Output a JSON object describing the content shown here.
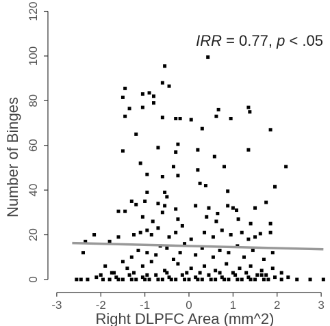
{
  "chart_data": {
    "type": "scatter",
    "xlabel": "Right DLPFC Area (mm^2)",
    "ylabel": "Number of Binges",
    "annotation": {
      "parts": [
        {
          "text": "IRR",
          "italic": true
        },
        {
          "text": " = 0.77, ",
          "italic": false
        },
        {
          "text": "p",
          "italic": true
        },
        {
          "text": " < .05",
          "italic": false
        }
      ]
    },
    "xlim": [
      -3.2,
      3.2
    ],
    "ylim": [
      -4,
      122
    ],
    "xticks": [
      -3,
      -2,
      -1,
      0,
      1,
      2,
      3
    ],
    "yticks": [
      0,
      20,
      40,
      60,
      80,
      100,
      120
    ],
    "grid": false,
    "legend": "none",
    "colors": {
      "points": "#000000",
      "fit_line": "#999999",
      "axis": "#333333"
    },
    "fit_line": {
      "x": [
        -2.65,
        3.05
      ],
      "y": [
        16.3,
        13.5
      ]
    },
    "points": [
      [
        -0.55,
        95.5
      ],
      [
        0.43,
        99.5
      ],
      [
        -1.5,
        81.5
      ],
      [
        -1.45,
        85.5
      ],
      [
        -0.6,
        88
      ],
      [
        -0.45,
        86.5
      ],
      [
        -0.9,
        83.5
      ],
      [
        -1.05,
        83
      ],
      [
        -0.8,
        82
      ],
      [
        -1.35,
        76.5
      ],
      [
        -1.45,
        73
      ],
      [
        -1.05,
        77
      ],
      [
        -0.8,
        79
      ],
      [
        -0.6,
        72.5
      ],
      [
        -0.3,
        72
      ],
      [
        -0.2,
        72
      ],
      [
        0.05,
        71.5
      ],
      [
        0.3,
        67.5
      ],
      [
        0.67,
        76
      ],
      [
        0.62,
        73
      ],
      [
        0.95,
        72
      ],
      [
        1.35,
        77
      ],
      [
        1.38,
        75
      ],
      [
        1.85,
        67
      ],
      [
        -1.2,
        65
      ],
      [
        -1.5,
        57.5
      ],
      [
        -0.7,
        59
      ],
      [
        -0.3,
        57
      ],
      [
        -0.25,
        60.5
      ],
      [
        0.2,
        58
      ],
      [
        0.58,
        55
      ],
      [
        0.8,
        50.5
      ],
      [
        1.35,
        58
      ],
      [
        2.2,
        50.5
      ],
      [
        -1.1,
        52
      ],
      [
        -0.35,
        50.5
      ],
      [
        -0.25,
        46.5
      ],
      [
        0.2,
        49
      ],
      [
        -0.95,
        47
      ],
      [
        -0.6,
        46
      ],
      [
        0.25,
        43
      ],
      [
        0.38,
        42
      ],
      [
        -0.55,
        39
      ],
      [
        -0.5,
        37
      ],
      [
        -0.95,
        39
      ],
      [
        1.95,
        41.5
      ],
      [
        0.88,
        39.5
      ],
      [
        -1.3,
        35
      ],
      [
        -1.2,
        33.5
      ],
      [
        -1.0,
        35
      ],
      [
        -0.7,
        34
      ],
      [
        -0.55,
        33
      ],
      [
        -0.6,
        30
      ],
      [
        -0.3,
        31.5
      ],
      [
        0.15,
        33
      ],
      [
        0.45,
        32
      ],
      [
        0.65,
        29.5
      ],
      [
        0.88,
        33
      ],
      [
        1.0,
        32
      ],
      [
        1.12,
        27
      ],
      [
        1.5,
        32
      ],
      [
        1.75,
        34.5
      ],
      [
        1.85,
        25
      ],
      [
        -1.6,
        30.5
      ],
      [
        -1.45,
        30.5
      ],
      [
        -1.05,
        28
      ],
      [
        -0.82,
        26
      ],
      [
        -0.25,
        27
      ],
      [
        0.4,
        28
      ],
      [
        0.62,
        26
      ],
      [
        1.08,
        31
      ],
      [
        1.4,
        25
      ],
      [
        -2.4,
        12
      ],
      [
        -2.35,
        17
      ],
      [
        -2.15,
        20
      ],
      [
        -1.8,
        17
      ],
      [
        -1.6,
        19
      ],
      [
        -1.25,
        20
      ],
      [
        -1.1,
        21
      ],
      [
        -0.95,
        22
      ],
      [
        -0.85,
        20
      ],
      [
        -0.7,
        23
      ],
      [
        -0.45,
        19
      ],
      [
        -0.3,
        21
      ],
      [
        -0.15,
        24
      ],
      [
        0.05,
        18
      ],
      [
        0.35,
        21
      ],
      [
        0.55,
        19
      ],
      [
        0.75,
        22
      ],
      [
        0.95,
        20
      ],
      [
        1.2,
        21
      ],
      [
        1.35,
        18
      ],
      [
        1.5,
        19
      ],
      [
        1.62,
        20.5
      ],
      [
        1.85,
        21
      ],
      [
        -1.9,
        6
      ],
      [
        -1.5,
        8
      ],
      [
        -1.3,
        10
      ],
      [
        -1.15,
        13
      ],
      [
        -0.95,
        12
      ],
      [
        -0.75,
        11
      ],
      [
        -0.65,
        15
      ],
      [
        -0.5,
        14
      ],
      [
        -0.35,
        9
      ],
      [
        -0.2,
        12
      ],
      [
        -0.1,
        16
      ],
      [
        0.15,
        11
      ],
      [
        0.3,
        14
      ],
      [
        0.55,
        10
      ],
      [
        0.7,
        13
      ],
      [
        0.9,
        12
      ],
      [
        1.1,
        15
      ],
      [
        1.25,
        10
      ],
      [
        1.45,
        13
      ],
      [
        1.7,
        9
      ],
      [
        1.9,
        12
      ],
      [
        -1.7,
        3
      ],
      [
        -1.4,
        5
      ],
      [
        -1.05,
        6
      ],
      [
        -0.85,
        8
      ],
      [
        -0.55,
        4
      ],
      [
        -0.25,
        7
      ],
      [
        0.05,
        5
      ],
      [
        0.35,
        6
      ],
      [
        0.6,
        4
      ],
      [
        0.85,
        7
      ],
      [
        1.15,
        5
      ],
      [
        1.4,
        6
      ],
      [
        1.65,
        4
      ],
      [
        1.9,
        5
      ],
      [
        2.1,
        3
      ],
      [
        -2.55,
        0
      ],
      [
        -2.45,
        0
      ],
      [
        -2.3,
        0
      ],
      [
        -2.1,
        1
      ],
      [
        -1.95,
        0
      ],
      [
        -1.8,
        0
      ],
      [
        -1.65,
        1
      ],
      [
        -1.5,
        0
      ],
      [
        -1.35,
        2
      ],
      [
        -1.2,
        0
      ],
      [
        -1.05,
        1
      ],
      [
        -0.9,
        0
      ],
      [
        -0.75,
        2
      ],
      [
        -0.6,
        0
      ],
      [
        -0.45,
        1
      ],
      [
        -0.3,
        0
      ],
      [
        -0.15,
        2
      ],
      [
        0.0,
        0
      ],
      [
        0.15,
        1
      ],
      [
        0.3,
        0
      ],
      [
        0.45,
        2
      ],
      [
        0.6,
        0
      ],
      [
        0.75,
        1
      ],
      [
        0.9,
        0
      ],
      [
        1.05,
        2
      ],
      [
        1.2,
        0
      ],
      [
        1.35,
        1
      ],
      [
        1.5,
        0
      ],
      [
        1.65,
        2
      ],
      [
        1.8,
        0
      ],
      [
        1.95,
        1
      ],
      [
        2.1,
        0
      ],
      [
        2.25,
        1
      ],
      [
        2.45,
        0
      ],
      [
        2.75,
        0
      ],
      [
        3.05,
        0
      ],
      [
        -1.6,
        0
      ],
      [
        -1.3,
        0
      ],
      [
        -1.0,
        0
      ],
      [
        -0.7,
        0
      ],
      [
        -0.4,
        0
      ],
      [
        -0.1,
        0
      ],
      [
        0.2,
        0
      ],
      [
        0.5,
        0
      ],
      [
        0.8,
        0
      ],
      [
        1.1,
        0
      ],
      [
        1.4,
        0
      ],
      [
        1.7,
        0
      ],
      [
        -2.0,
        2
      ],
      [
        -1.75,
        3
      ],
      [
        -1.25,
        3
      ],
      [
        -0.95,
        2
      ],
      [
        -0.5,
        3
      ],
      [
        -0.05,
        3
      ],
      [
        0.25,
        3
      ],
      [
        0.7,
        3
      ],
      [
        1.0,
        3
      ],
      [
        1.3,
        3
      ],
      [
        1.55,
        2
      ],
      [
        1.75,
        2
      ]
    ]
  }
}
